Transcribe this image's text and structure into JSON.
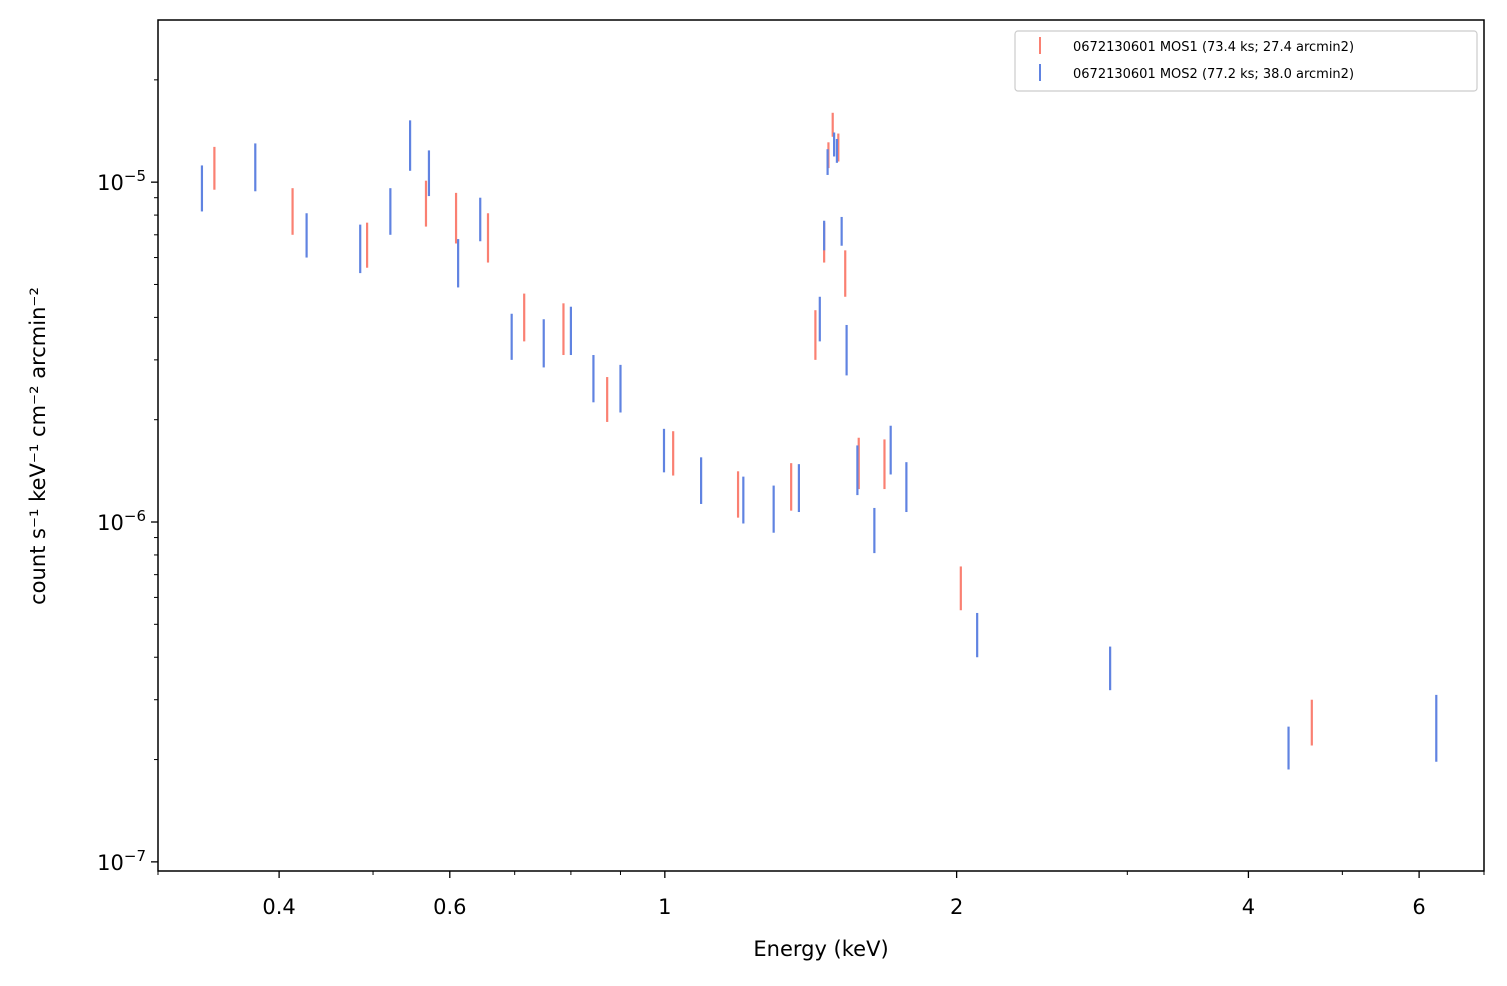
{
  "chart_data": {
    "type": "scatter",
    "xlabel": "Energy (keV)",
    "ylabel": "count s⁻¹ keV⁻¹ cm⁻² arcmin⁻²",
    "xscale": "log",
    "yscale": "log",
    "xlim": [
      0.3,
      7.0
    ],
    "ylim": [
      9.4e-08,
      3e-05
    ],
    "xticks": [
      {
        "value": 0.4,
        "label": "0.4"
      },
      {
        "value": 0.6,
        "label": "0.6"
      },
      {
        "value": 1,
        "label": "1"
      },
      {
        "value": 2,
        "label": "2"
      },
      {
        "value": 4,
        "label": "4"
      },
      {
        "value": 6,
        "label": "6"
      }
    ],
    "yticks": [
      {
        "value": 1e-07,
        "base": "10",
        "exp": "−7"
      },
      {
        "value": 1e-06,
        "base": "10",
        "exp": "−6"
      },
      {
        "value": 1e-05,
        "base": "10",
        "exp": "−5"
      }
    ],
    "grid": false,
    "legend_position": "top-right",
    "series": [
      {
        "name": "0672130601 MOS1 (73.4 ks; 27.4 arcmin2)",
        "color": "#fa8072",
        "points": [
          {
            "x": 0.343,
            "lo": 9.5e-06,
            "hi": 1.27e-05
          },
          {
            "x": 0.413,
            "lo": 7e-06,
            "hi": 9.6e-06
          },
          {
            "x": 0.493,
            "lo": 5.6e-06,
            "hi": 7.6e-06
          },
          {
            "x": 0.567,
            "lo": 7.4e-06,
            "hi": 1.01e-05
          },
          {
            "x": 0.609,
            "lo": 6.6e-06,
            "hi": 9.3e-06
          },
          {
            "x": 0.657,
            "lo": 5.8e-06,
            "hi": 8.1e-06
          },
          {
            "x": 0.716,
            "lo": 3.4e-06,
            "hi": 4.7e-06
          },
          {
            "x": 0.786,
            "lo": 3.1e-06,
            "hi": 4.4e-06
          },
          {
            "x": 0.872,
            "lo": 1.97e-06,
            "hi": 2.67e-06
          },
          {
            "x": 1.02,
            "lo": 1.37e-06,
            "hi": 1.85e-06
          },
          {
            "x": 1.19,
            "lo": 1.03e-06,
            "hi": 1.41e-06
          },
          {
            "x": 1.35,
            "lo": 1.08e-06,
            "hi": 1.49e-06
          },
          {
            "x": 1.43,
            "lo": 3e-06,
            "hi": 4.2e-06
          },
          {
            "x": 1.46,
            "lo": 5.8e-06,
            "hi": 7.6e-06
          },
          {
            "x": 1.475,
            "lo": 1.1e-05,
            "hi": 1.31e-05
          },
          {
            "x": 1.49,
            "lo": 1.36e-05,
            "hi": 1.6e-05
          },
          {
            "x": 1.51,
            "lo": 1.15e-05,
            "hi": 1.39e-05
          },
          {
            "x": 1.535,
            "lo": 4.6e-06,
            "hi": 6.3e-06
          },
          {
            "x": 1.585,
            "lo": 1.25e-06,
            "hi": 1.77e-06
          },
          {
            "x": 1.685,
            "lo": 1.25e-06,
            "hi": 1.75e-06
          },
          {
            "x": 2.02,
            "lo": 5.5e-07,
            "hi": 7.4e-07
          },
          {
            "x": 4.65,
            "lo": 2.2e-07,
            "hi": 3e-07
          }
        ]
      },
      {
        "name": "0672130601 MOS2 (77.2 ks; 38.0 arcmin2)",
        "color": "#6083e1",
        "points": [
          {
            "x": 0.333,
            "lo": 8.2e-06,
            "hi": 1.12e-05
          },
          {
            "x": 0.378,
            "lo": 9.4e-06,
            "hi": 1.3e-05
          },
          {
            "x": 0.427,
            "lo": 6e-06,
            "hi": 8.1e-06
          },
          {
            "x": 0.485,
            "lo": 5.4e-06,
            "hi": 7.5e-06
          },
          {
            "x": 0.521,
            "lo": 7e-06,
            "hi": 9.6e-06
          },
          {
            "x": 0.546,
            "lo": 1.08e-05,
            "hi": 1.52e-05
          },
          {
            "x": 0.571,
            "lo": 9.1e-06,
            "hi": 1.24e-05
          },
          {
            "x": 0.612,
            "lo": 4.9e-06,
            "hi": 6.8e-06
          },
          {
            "x": 0.645,
            "lo": 6.7e-06,
            "hi": 9e-06
          },
          {
            "x": 0.695,
            "lo": 3e-06,
            "hi": 4.1e-06
          },
          {
            "x": 0.75,
            "lo": 2.85e-06,
            "hi": 3.95e-06
          },
          {
            "x": 0.8,
            "lo": 3.1e-06,
            "hi": 4.3e-06
          },
          {
            "x": 0.844,
            "lo": 2.25e-06,
            "hi": 3.1e-06
          },
          {
            "x": 0.9,
            "lo": 2.1e-06,
            "hi": 2.9e-06
          },
          {
            "x": 0.998,
            "lo": 1.4e-06,
            "hi": 1.88e-06
          },
          {
            "x": 1.09,
            "lo": 1.13e-06,
            "hi": 1.55e-06
          },
          {
            "x": 1.205,
            "lo": 9.9e-07,
            "hi": 1.36e-06
          },
          {
            "x": 1.295,
            "lo": 9.3e-07,
            "hi": 1.28e-06
          },
          {
            "x": 1.375,
            "lo": 1.07e-06,
            "hi": 1.48e-06
          },
          {
            "x": 1.445,
            "lo": 3.4e-06,
            "hi": 4.6e-06
          },
          {
            "x": 1.46,
            "lo": 6.3e-06,
            "hi": 7.7e-06
          },
          {
            "x": 1.472,
            "lo": 1.05e-05,
            "hi": 1.25e-05
          },
          {
            "x": 1.495,
            "lo": 1.19e-05,
            "hi": 1.4e-05
          },
          {
            "x": 1.505,
            "lo": 1.14e-05,
            "hi": 1.34e-05
          },
          {
            "x": 1.522,
            "lo": 6.5e-06,
            "hi": 7.9e-06
          },
          {
            "x": 1.54,
            "lo": 2.7e-06,
            "hi": 3.8e-06
          },
          {
            "x": 1.58,
            "lo": 1.2e-06,
            "hi": 1.68e-06
          },
          {
            "x": 1.645,
            "lo": 8.1e-07,
            "hi": 1.1e-06
          },
          {
            "x": 1.71,
            "lo": 1.38e-06,
            "hi": 1.92e-06
          },
          {
            "x": 1.775,
            "lo": 1.07e-06,
            "hi": 1.5e-06
          },
          {
            "x": 2.1,
            "lo": 4e-07,
            "hi": 5.4e-07
          },
          {
            "x": 2.88,
            "lo": 3.2e-07,
            "hi": 4.3e-07
          },
          {
            "x": 4.4,
            "lo": 1.87e-07,
            "hi": 2.5e-07
          },
          {
            "x": 6.25,
            "lo": 1.97e-07,
            "hi": 3.1e-07
          }
        ]
      }
    ]
  }
}
